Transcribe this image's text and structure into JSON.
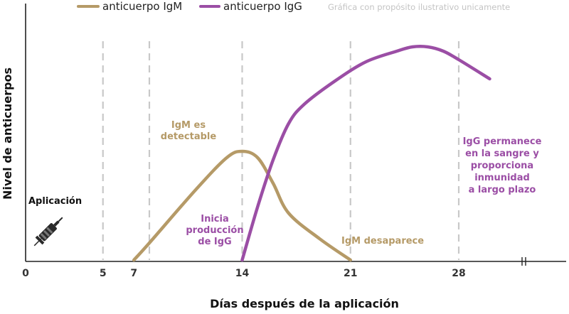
{
  "chart_data": {
    "type": "line",
    "title": "",
    "note": "Gráfica con propósito ilustrativo unicamente",
    "xlabel": "Días después de la aplicación",
    "ylabel": "Nivel de anticuerpos",
    "xticks": [
      0,
      5,
      7,
      14,
      21,
      28
    ],
    "gridlines_x": [
      5,
      8,
      14,
      21,
      28
    ],
    "xlim": [
      0,
      32
    ],
    "ylim": [
      0,
      100
    ],
    "grid": "vertical dashed",
    "legend_position": "top",
    "series": [
      {
        "name": "anticuerpo IgM",
        "color": "#b59a67",
        "points": [
          [
            7,
            0
          ],
          [
            8,
            8
          ],
          [
            11,
            33
          ],
          [
            13,
            48
          ],
          [
            14,
            51
          ],
          [
            15,
            48
          ],
          [
            16,
            36
          ],
          [
            17,
            22
          ],
          [
            19,
            10
          ],
          [
            21,
            0
          ]
        ]
      },
      {
        "name": "anticuerpo IgG",
        "color": "#9b4ea5",
        "points": [
          [
            14,
            0
          ],
          [
            15,
            25
          ],
          [
            16,
            47
          ],
          [
            17,
            64
          ],
          [
            18,
            73
          ],
          [
            20,
            84
          ],
          [
            22,
            93
          ],
          [
            24,
            98
          ],
          [
            25,
            100
          ],
          [
            26,
            100
          ],
          [
            27,
            98
          ],
          [
            28,
            94
          ],
          [
            30,
            85
          ]
        ]
      }
    ],
    "annotations": [
      {
        "id": "aplicacion",
        "text": "Aplicación",
        "color": "#111111",
        "lines": [
          "Aplicación"
        ]
      },
      {
        "id": "igm_detectable",
        "color": "#b59a67",
        "lines": [
          "IgM es",
          "detectable"
        ]
      },
      {
        "id": "igg_inicia",
        "color": "#9b4ea5",
        "lines": [
          "Inicia",
          "producción",
          "de IgG"
        ]
      },
      {
        "id": "igm_desaparece",
        "color": "#b59a67",
        "lines": [
          "IgM desaparece"
        ]
      },
      {
        "id": "igg_permanece",
        "color": "#9b4ea5",
        "lines": [
          "IgG permanece",
          "en la sangre y",
          "proporciona",
          "inmunidad",
          "a largo plazo"
        ]
      }
    ]
  }
}
